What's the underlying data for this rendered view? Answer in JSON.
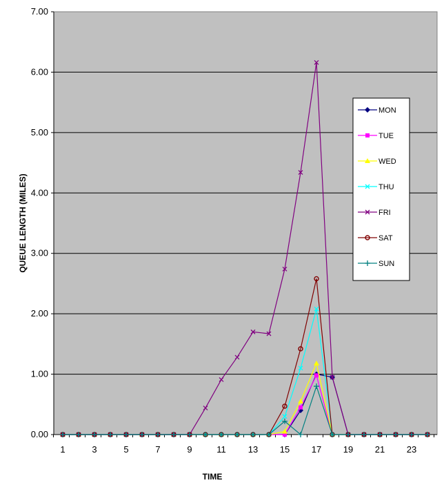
{
  "chart_data": {
    "type": "line",
    "xlabel": "TIME",
    "ylabel": "QUEUE  LENGTH  (MILES)",
    "ylim": [
      0,
      7
    ],
    "yticks": [
      "0.00",
      "1.00",
      "2.00",
      "3.00",
      "4.00",
      "5.00",
      "6.00",
      "7.00"
    ],
    "x": [
      1,
      2,
      3,
      4,
      5,
      6,
      7,
      8,
      9,
      10,
      11,
      12,
      13,
      14,
      15,
      16,
      17,
      18,
      19,
      20,
      21,
      22,
      23,
      24
    ],
    "xtick_labels": [
      "1",
      "3",
      "5",
      "7",
      "9",
      "11",
      "13",
      "15",
      "17",
      "19",
      "21",
      "23"
    ],
    "grid": "horizontal",
    "plot_background": "#c0c0c0",
    "legend_position": "right",
    "series": [
      {
        "name": "MON",
        "color": "#000080",
        "marker": "diamond",
        "values": [
          0,
          0,
          0,
          0,
          0,
          0,
          0,
          0,
          0,
          0,
          0,
          0,
          0,
          0,
          0,
          0.4,
          1.0,
          0.95,
          0,
          0,
          0,
          0,
          0,
          0
        ]
      },
      {
        "name": "TUE",
        "color": "#ff00ff",
        "marker": "square",
        "values": [
          0,
          0,
          0,
          0,
          0,
          0,
          0,
          0,
          0,
          0,
          0,
          0,
          0,
          0,
          0,
          0.45,
          0.98,
          0,
          0,
          0,
          0,
          0,
          0,
          0
        ]
      },
      {
        "name": "WED",
        "color": "#ffff00",
        "marker": "triangle",
        "values": [
          0,
          0,
          0,
          0,
          0,
          0,
          0,
          0,
          0,
          0,
          0,
          0,
          0,
          0,
          0.05,
          0.55,
          1.18,
          0,
          0,
          0,
          0,
          0,
          0,
          0
        ]
      },
      {
        "name": "THU",
        "color": "#00ffff",
        "marker": "x",
        "values": [
          0,
          0,
          0,
          0,
          0,
          0,
          0,
          0,
          0,
          0,
          0,
          0,
          0,
          0,
          0.3,
          1.1,
          2.08,
          0,
          0,
          0,
          0,
          0,
          0,
          0
        ]
      },
      {
        "name": "FRI",
        "color": "#800080",
        "marker": "x",
        "values": [
          0,
          0,
          0,
          0,
          0,
          0,
          0,
          0,
          0,
          0.44,
          0.91,
          1.28,
          1.7,
          1.67,
          2.74,
          4.34,
          6.16,
          0.95,
          0,
          0,
          0,
          0,
          0,
          0
        ]
      },
      {
        "name": "SAT",
        "color": "#800000",
        "marker": "circle",
        "values": [
          0,
          0,
          0,
          0,
          0,
          0,
          0,
          0,
          0,
          0,
          0,
          0,
          0,
          0,
          0.47,
          1.42,
          2.58,
          0,
          0,
          0,
          0,
          0,
          0,
          0
        ]
      },
      {
        "name": "SUN",
        "color": "#008080",
        "marker": "plus",
        "values": [
          0,
          0,
          0,
          0,
          0,
          0,
          0,
          0,
          0,
          0,
          0,
          0,
          0,
          0,
          0.22,
          0,
          0.8,
          0,
          0,
          0,
          0,
          0,
          0,
          0
        ]
      }
    ]
  }
}
